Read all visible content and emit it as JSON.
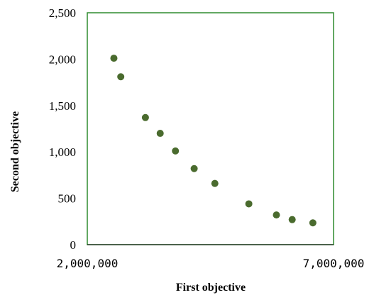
{
  "chart_data": {
    "type": "scatter",
    "title": "",
    "xlabel": "First objective",
    "ylabel": "Second objective",
    "xlim": [
      2000000,
      7000000
    ],
    "ylim": [
      0,
      2500
    ],
    "x_ticks": [
      "2,000,000",
      "7,000,000"
    ],
    "y_ticks": [
      "0",
      "500",
      "1,000",
      "1,500",
      "2,000",
      "2,500"
    ],
    "x_tick_values": [
      2000000,
      7000000
    ],
    "y_tick_values": [
      0,
      500,
      1000,
      1500,
      2000,
      2500
    ],
    "grid": false,
    "legend": "none",
    "colors": {
      "marker": "#4a6b2e",
      "frame": "#2e8b2e",
      "axis": "#000000"
    },
    "series": [
      {
        "x": [
          2540000,
          2680000,
          3180000,
          3480000,
          3790000,
          4170000,
          4590000,
          5280000,
          5840000,
          6160000,
          6580000
        ],
        "y": [
          2010,
          1810,
          1370,
          1200,
          1010,
          820,
          660,
          440,
          320,
          270,
          235
        ]
      }
    ]
  }
}
